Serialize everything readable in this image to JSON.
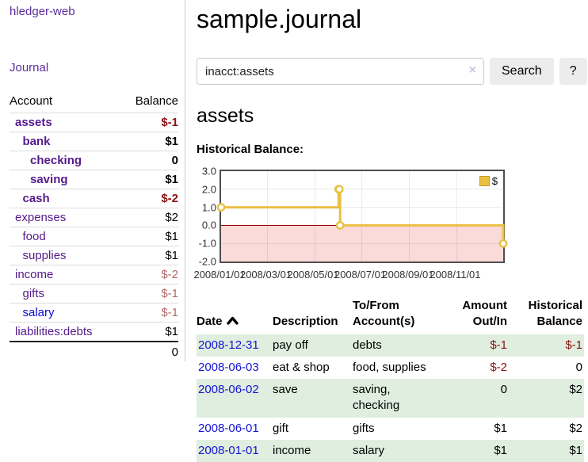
{
  "sidebar": {
    "brand": "hledger-web",
    "journal_link": "Journal",
    "accounts_table": {
      "headers": {
        "account": "Account",
        "balance": "Balance"
      },
      "rows": [
        {
          "name": "assets",
          "depth": 1,
          "bold": true,
          "balance": "$-1"
        },
        {
          "name": "bank",
          "depth": 2,
          "bold": true,
          "balance": "$1"
        },
        {
          "name": "checking",
          "depth": 3,
          "bold": true,
          "balance": "0"
        },
        {
          "name": "saving",
          "depth": 3,
          "bold": true,
          "balance": "$1"
        },
        {
          "name": "cash",
          "depth": 2,
          "bold": true,
          "balance": "$-2"
        },
        {
          "name": "expenses",
          "depth": 1,
          "bold": false,
          "balance": "$2"
        },
        {
          "name": "food",
          "depth": 2,
          "bold": false,
          "balance": "$1"
        },
        {
          "name": "supplies",
          "depth": 2,
          "bold": false,
          "balance": "$1"
        },
        {
          "name": "income",
          "depth": 1,
          "bold": false,
          "balance": "$-2"
        },
        {
          "name": "gifts",
          "depth": 2,
          "bold": false,
          "balance": "$-1"
        },
        {
          "name": "salary",
          "depth": 2,
          "bold": false,
          "balance": "$-1",
          "unvisited": true
        },
        {
          "name": "liabilities:debts",
          "depth": 1,
          "bold": false,
          "balance": "$1"
        }
      ],
      "total": "0"
    }
  },
  "header": {
    "title": "sample.journal"
  },
  "search": {
    "value": "inacct:assets",
    "clear_icon": "×",
    "button_label": "Search",
    "help_label": "?"
  },
  "account_page": {
    "heading": "assets",
    "section_label": "Historical Balance:"
  },
  "chart_data": {
    "type": "line",
    "step": true,
    "title": "Historical Balance:",
    "series": [
      {
        "name": "$",
        "color": "#e9c044",
        "points": [
          [
            "2008-01-01",
            1
          ],
          [
            "2008-06-01",
            2
          ],
          [
            "2008-06-02",
            2
          ],
          [
            "2008-06-03",
            0
          ],
          [
            "2008-12-31",
            -1
          ]
        ]
      }
    ],
    "x_range": [
      "2008-01-01",
      "2008-12-31"
    ],
    "ylim": [
      -2,
      3
    ],
    "yticks": [
      3,
      2,
      1,
      0,
      -1,
      -2
    ],
    "ytick_labels": [
      "3.0",
      "2.0",
      "1.0",
      "0.0",
      "-1.0",
      "-2.0"
    ],
    "xtick_labels": [
      "2008/01/01",
      "2008/03/01",
      "2008/05/01",
      "2008/07/01",
      "2008/09/01",
      "2008/11/01"
    ],
    "grid": true,
    "legend_position": "top-right",
    "negative_region_color": "#fbdada",
    "zero_line_color": "#9e0000"
  },
  "register_table": {
    "headers": [
      "Date",
      "Description",
      "To/From Account(s)",
      "Amount Out/In",
      "Historical Balance"
    ],
    "sort_column": "Date",
    "sort_direction": "asc",
    "rows": [
      {
        "date": "2008-12-31",
        "description": "pay off",
        "accounts": "debts",
        "amount": "$-1",
        "balance": "$-1"
      },
      {
        "date": "2008-06-03",
        "description": "eat & shop",
        "accounts": "food, supplies",
        "amount": "$-2",
        "balance": "0"
      },
      {
        "date": "2008-06-02",
        "description": "save",
        "accounts": "saving, checking",
        "amount": "0",
        "balance": "$2"
      },
      {
        "date": "2008-06-01",
        "description": "gift",
        "accounts": "gifts",
        "amount": "$1",
        "balance": "$2"
      },
      {
        "date": "2008-01-01",
        "description": "income",
        "accounts": "salary",
        "amount": "$1",
        "balance": "$1"
      }
    ]
  },
  "colors": {
    "link_purple": "#551a8b",
    "link_blue": "#0b0bd8",
    "negative": "#8b1212",
    "negative_dim": "#b16a6a",
    "row_stripe_green": "#dfeede",
    "chart_line_gold": "#e9c044",
    "chart_negative_pink": "#fbdada",
    "chart_zero_red": "#9e0000"
  }
}
